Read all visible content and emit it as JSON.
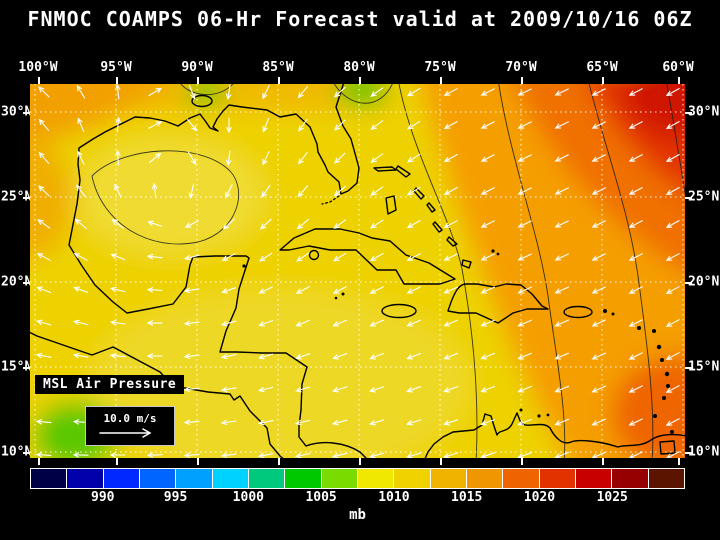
{
  "title": "FNMOC COAMPS 06-Hr Forecast valid at 2009/10/16 06Z",
  "axes": {
    "lon_labels": [
      "100°W",
      "95°W",
      "90°W",
      "85°W",
      "80°W",
      "75°W",
      "70°W",
      "65°W",
      "60°W"
    ],
    "lat_labels": [
      "30°N",
      "25°N",
      "20°N",
      "15°N",
      "10°N"
    ]
  },
  "map": {
    "field_label": "MSL Air Pressure",
    "wind_scale_label": "10.0 m/s"
  },
  "colorbar": {
    "unit": "mb",
    "min_mb": 985,
    "max_mb": 1030,
    "tick_values_mb": [
      990,
      995,
      1000,
      1005,
      1010,
      1015,
      1020,
      1025
    ],
    "colors": [
      "#000046",
      "#0000aa",
      "#0028ff",
      "#0064ff",
      "#00a0ff",
      "#00d2ff",
      "#00c87d",
      "#00c800",
      "#78dc00",
      "#f0e800",
      "#f0d200",
      "#f0b400",
      "#f09600",
      "#f06400",
      "#e13200",
      "#c80000",
      "#960000",
      "#5a1400"
    ]
  },
  "chart_data": {
    "type": "heatmap",
    "title": "FNMOC COAMPS 06-Hr Forecast valid at 2009/10/16 06Z",
    "field": "MSL Air Pressure",
    "unit": "mb",
    "lon_ticks": [
      "100°W",
      "95°W",
      "90°W",
      "85°W",
      "80°W",
      "75°W",
      "70°W",
      "65°W",
      "60°W"
    ],
    "lat_ticks": [
      "30°N",
      "25°N",
      "20°N",
      "15°N",
      "10°N"
    ],
    "colorbar_ticks_mb": [
      990,
      995,
      1000,
      1005,
      1010,
      1015,
      1020,
      1025
    ],
    "colorbar_range_mb": [
      985,
      1030
    ],
    "wind_reference": "10.0 m/s"
  }
}
